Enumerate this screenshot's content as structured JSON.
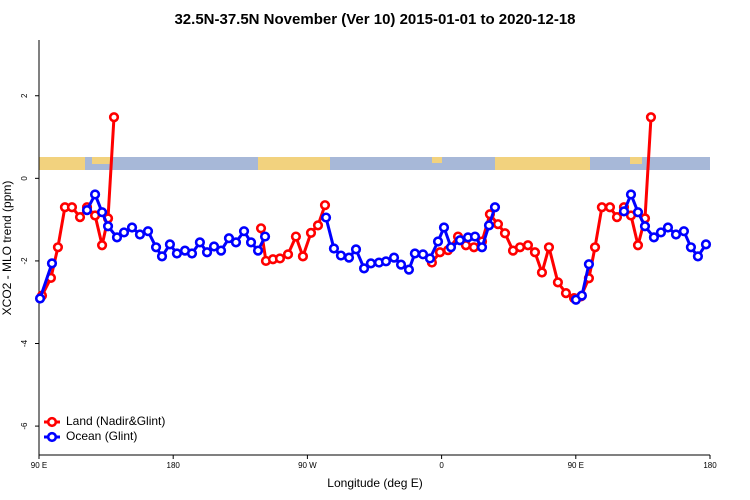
{
  "chart_data": {
    "type": "line",
    "title": "32.5N-37.5N November (Ver 10)   2015-01-01 to 2020-12-18",
    "x_label": "Longitude (deg E)",
    "y_label": "XCO2 - MLO trend (ppm)",
    "xlim": [
      90,
      540
    ],
    "ylim": [
      -6.7,
      3.35
    ],
    "xticks": [
      {
        "value": 90,
        "label": "90 E"
      },
      180,
      {
        "value": 270,
        "label": "90 W"
      },
      {
        "value": 360,
        "label": "0"
      },
      {
        "value": 450,
        "label": "90 E"
      },
      {
        "value": 540,
        "label": "180"
      }
    ],
    "yticks": [
      -6,
      -4,
      -2,
      0,
      2
    ],
    "legend": "bottom-left",
    "series": [
      {
        "name": "Land (Nadir&Glint)",
        "color": "#ff0000",
        "x": [
          92.0,
          98.0,
          102.7,
          107.4,
          112.1,
          117.5,
          122.2,
          127.6,
          132.3,
          136.3,
          140.3,
          null,
          238.9,
          242.2,
          246.9,
          251.6,
          257.0,
          262.3,
          267.0,
          272.4,
          277.1,
          281.8,
          null,
          353.5,
          358.9,
          364.3,
          371.0,
          376.3,
          381.7,
          387.1,
          392.4,
          397.8,
          402.5,
          407.9,
          412.6,
          417.9,
          422.6,
          427.3,
          432.0,
          438.0,
          443.4,
          448.8,
          453.5,
          458.8,
          462.9,
          467.5,
          472.9,
          477.6,
          482.3,
          487.0,
          491.7,
          496.4,
          500.4
        ],
        "values": [
          -2.84,
          -2.41,
          -1.67,
          -0.7,
          -0.7,
          -0.94,
          -0.7,
          -0.9,
          -1.62,
          -0.97,
          1.48,
          null,
          -1.21,
          -2.0,
          -1.96,
          -1.94,
          -1.84,
          -1.41,
          -1.89,
          -1.32,
          -1.14,
          -0.65,
          null,
          -2.04,
          -1.79,
          -1.74,
          -1.41,
          -1.62,
          -1.67,
          -1.53,
          -0.87,
          -1.11,
          -1.33,
          -1.75,
          -1.67,
          -1.62,
          -1.79,
          -2.28,
          -1.67,
          -2.52,
          -2.78,
          -2.9,
          -2.86,
          -2.42,
          -1.67,
          -0.7,
          -0.7,
          -0.94,
          -0.7,
          -0.9,
          -1.62,
          -0.97,
          1.48
        ]
      },
      {
        "name": "Ocean (Glint)",
        "color": "#0000ff",
        "x": [
          90.7,
          98.7,
          null,
          122.2,
          127.6,
          132.3,
          136.3,
          142.3,
          147.0,
          152.4,
          157.7,
          163.1,
          168.5,
          172.5,
          177.8,
          182.5,
          187.9,
          192.6,
          197.9,
          202.7,
          207.4,
          212.1,
          217.4,
          222.1,
          227.5,
          232.2,
          236.9,
          241.6,
          null,
          282.5,
          287.8,
          292.5,
          297.9,
          302.6,
          308.0,
          312.6,
          318.0,
          322.7,
          328.1,
          332.8,
          338.1,
          342.1,
          347.5,
          352.2,
          357.6,
          361.6,
          366.3,
          372.3,
          377.7,
          382.4,
          387.1,
          391.8,
          395.8,
          null,
          450.1,
          454.1,
          458.8,
          null,
          482.3,
          487.0,
          491.7,
          496.4,
          502.4,
          507.1,
          511.8,
          517.2,
          522.5,
          527.2,
          531.9,
          537.3
        ],
        "values": [
          -2.91,
          -2.06,
          null,
          -0.77,
          -0.39,
          -0.82,
          -1.16,
          -1.43,
          -1.31,
          -1.19,
          -1.36,
          -1.28,
          -1.67,
          -1.89,
          -1.6,
          -1.82,
          -1.75,
          -1.82,
          -1.55,
          -1.79,
          -1.65,
          -1.75,
          -1.45,
          -1.55,
          -1.28,
          -1.55,
          -1.75,
          -1.41,
          null,
          -0.95,
          -1.7,
          -1.87,
          -1.92,
          -1.72,
          -2.18,
          -2.06,
          -2.04,
          -2.01,
          -1.92,
          -2.09,
          -2.21,
          -1.82,
          -1.84,
          -1.94,
          -1.53,
          -1.19,
          -1.67,
          -1.5,
          -1.43,
          -1.41,
          -1.67,
          -1.14,
          -0.7,
          null,
          -2.94,
          -2.84,
          -2.08,
          null,
          -0.8,
          -0.39,
          -0.82,
          -1.16,
          -1.43,
          -1.31,
          -1.19,
          -1.36,
          -1.28,
          -1.67,
          -1.89,
          -1.6
        ]
      }
    ]
  }
}
